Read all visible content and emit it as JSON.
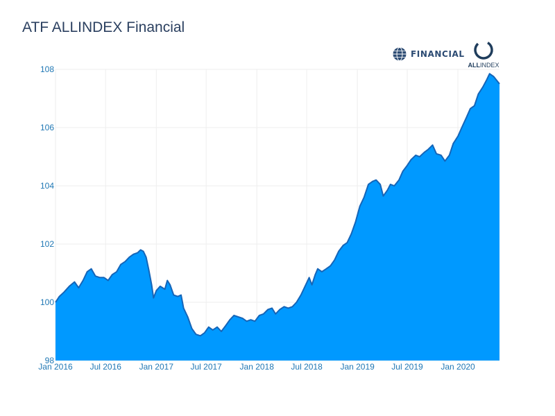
{
  "chart_data": {
    "type": "area",
    "title": "ATF ALLINDEX Financial",
    "xlabel": "",
    "ylabel": "",
    "x_start": "2016-01-01",
    "x_end": "2020-05-31",
    "ylim": [
      98,
      108
    ],
    "grid": true,
    "fill_color": "#0099ff",
    "line_color": "#1565b8",
    "y_ticks": [
      {
        "value": 98,
        "label": "98"
      },
      {
        "value": 100,
        "label": "100"
      },
      {
        "value": 102,
        "label": "102"
      },
      {
        "value": 104,
        "label": "104"
      },
      {
        "value": 106,
        "label": "106"
      },
      {
        "value": 108,
        "label": "108"
      }
    ],
    "x_ticks": [
      {
        "value": "2016-01-01",
        "label": "Jan 2016"
      },
      {
        "value": "2016-07-01",
        "label": "Jul 2016"
      },
      {
        "value": "2017-01-01",
        "label": "Jan 2017"
      },
      {
        "value": "2017-07-01",
        "label": "Jul 2017"
      },
      {
        "value": "2018-01-01",
        "label": "Jan 2018"
      },
      {
        "value": "2018-07-01",
        "label": "Jul 2018"
      },
      {
        "value": "2019-01-01",
        "label": "Jan 2019"
      },
      {
        "value": "2019-07-01",
        "label": "Jul 2019"
      },
      {
        "value": "2020-01-01",
        "label": "Jan 2020"
      }
    ],
    "series": [
      {
        "values": [
          [
            "2016-01-01",
            100.0
          ],
          [
            "2016-01-15",
            100.2
          ],
          [
            "2016-02-01",
            100.35
          ],
          [
            "2016-02-20",
            100.55
          ],
          [
            "2016-03-10",
            100.7
          ],
          [
            "2016-03-25",
            100.5
          ],
          [
            "2016-04-10",
            100.75
          ],
          [
            "2016-04-25",
            101.05
          ],
          [
            "2016-05-10",
            101.15
          ],
          [
            "2016-05-25",
            100.9
          ],
          [
            "2016-06-10",
            100.85
          ],
          [
            "2016-06-25",
            100.85
          ],
          [
            "2016-07-10",
            100.75
          ],
          [
            "2016-07-25",
            100.95
          ],
          [
            "2016-08-10",
            101.05
          ],
          [
            "2016-08-25",
            101.3
          ],
          [
            "2016-09-10",
            101.4
          ],
          [
            "2016-09-25",
            101.55
          ],
          [
            "2016-10-10",
            101.65
          ],
          [
            "2016-10-25",
            101.7
          ],
          [
            "2016-11-05",
            101.8
          ],
          [
            "2016-11-15",
            101.75
          ],
          [
            "2016-11-25",
            101.55
          ],
          [
            "2016-12-05",
            101.1
          ],
          [
            "2016-12-15",
            100.6
          ],
          [
            "2016-12-22",
            100.15
          ],
          [
            "2017-01-01",
            100.4
          ],
          [
            "2017-01-15",
            100.55
          ],
          [
            "2017-02-01",
            100.45
          ],
          [
            "2017-02-10",
            100.75
          ],
          [
            "2017-02-20",
            100.6
          ],
          [
            "2017-03-05",
            100.25
          ],
          [
            "2017-03-20",
            100.2
          ],
          [
            "2017-04-01",
            100.25
          ],
          [
            "2017-04-10",
            99.8
          ],
          [
            "2017-04-25",
            99.5
          ],
          [
            "2017-05-10",
            99.1
          ],
          [
            "2017-05-25",
            98.9
          ],
          [
            "2017-06-10",
            98.85
          ],
          [
            "2017-06-25",
            98.95
          ],
          [
            "2017-07-10",
            99.15
          ],
          [
            "2017-07-25",
            99.05
          ],
          [
            "2017-08-10",
            99.15
          ],
          [
            "2017-08-25",
            99.0
          ],
          [
            "2017-09-10",
            99.2
          ],
          [
            "2017-09-25",
            99.4
          ],
          [
            "2017-10-10",
            99.55
          ],
          [
            "2017-10-25",
            99.5
          ],
          [
            "2017-11-10",
            99.45
          ],
          [
            "2017-11-25",
            99.35
          ],
          [
            "2017-12-10",
            99.4
          ],
          [
            "2017-12-25",
            99.35
          ],
          [
            "2018-01-10",
            99.55
          ],
          [
            "2018-01-25",
            99.6
          ],
          [
            "2018-02-10",
            99.75
          ],
          [
            "2018-02-25",
            99.8
          ],
          [
            "2018-03-10",
            99.6
          ],
          [
            "2018-03-25",
            99.75
          ],
          [
            "2018-04-10",
            99.85
          ],
          [
            "2018-04-25",
            99.8
          ],
          [
            "2018-05-10",
            99.85
          ],
          [
            "2018-05-25",
            100.0
          ],
          [
            "2018-06-10",
            100.25
          ],
          [
            "2018-06-25",
            100.55
          ],
          [
            "2018-07-10",
            100.85
          ],
          [
            "2018-07-20",
            100.6
          ],
          [
            "2018-08-01",
            100.95
          ],
          [
            "2018-08-10",
            101.15
          ],
          [
            "2018-08-25",
            101.05
          ],
          [
            "2018-09-10",
            101.15
          ],
          [
            "2018-09-25",
            101.25
          ],
          [
            "2018-10-10",
            101.45
          ],
          [
            "2018-10-25",
            101.75
          ],
          [
            "2018-11-10",
            101.95
          ],
          [
            "2018-11-25",
            102.05
          ],
          [
            "2018-12-10",
            102.35
          ],
          [
            "2018-12-25",
            102.75
          ],
          [
            "2019-01-10",
            103.3
          ],
          [
            "2019-01-25",
            103.6
          ],
          [
            "2019-02-10",
            104.05
          ],
          [
            "2019-02-25",
            104.15
          ],
          [
            "2019-03-10",
            104.2
          ],
          [
            "2019-03-25",
            104.05
          ],
          [
            "2019-04-05",
            103.65
          ],
          [
            "2019-04-20",
            103.85
          ],
          [
            "2019-05-01",
            104.05
          ],
          [
            "2019-05-15",
            104.0
          ],
          [
            "2019-06-01",
            104.2
          ],
          [
            "2019-06-15",
            104.5
          ],
          [
            "2019-07-01",
            104.7
          ],
          [
            "2019-07-15",
            104.9
          ],
          [
            "2019-08-01",
            105.05
          ],
          [
            "2019-08-15",
            105.0
          ],
          [
            "2019-09-01",
            105.15
          ],
          [
            "2019-09-15",
            105.25
          ],
          [
            "2019-10-01",
            105.4
          ],
          [
            "2019-10-15",
            105.1
          ],
          [
            "2019-11-01",
            105.05
          ],
          [
            "2019-11-15",
            104.85
          ],
          [
            "2019-12-01",
            105.05
          ],
          [
            "2019-12-15",
            105.45
          ],
          [
            "2020-01-01",
            105.7
          ],
          [
            "2020-01-15",
            106.0
          ],
          [
            "2020-02-01",
            106.35
          ],
          [
            "2020-02-15",
            106.65
          ],
          [
            "2020-03-01",
            106.75
          ],
          [
            "2020-03-15",
            107.15
          ],
          [
            "2020-04-01",
            107.4
          ],
          [
            "2020-04-15",
            107.65
          ],
          [
            "2020-04-25",
            107.85
          ],
          [
            "2020-05-10",
            107.75
          ],
          [
            "2020-05-31",
            107.5
          ]
        ]
      }
    ]
  },
  "logos": {
    "financial_logo_text": "FINANCIAL",
    "allindex_logo_text_bold": "ALL",
    "allindex_logo_text_light": "INDEX"
  }
}
